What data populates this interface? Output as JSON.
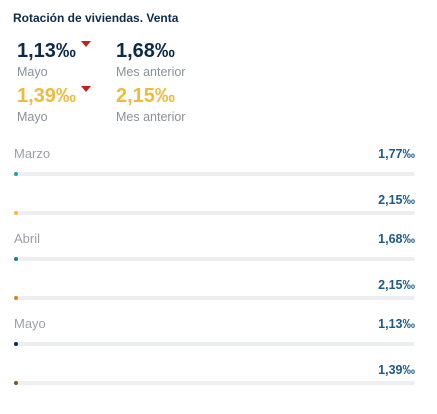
{
  "header": {
    "title": "Rotación de viviendas. Venta"
  },
  "kpis": {
    "primary_current": {
      "value": "1,13‰",
      "label": "Mayo",
      "trend": "down"
    },
    "primary_previous": {
      "value": "1,68‰",
      "label": "Mes anterior"
    },
    "secondary_current": {
      "value": "1,39‰",
      "label": "Mayo",
      "trend": "down"
    },
    "secondary_previous": {
      "value": "2,15‰",
      "label": "Mes anterior"
    }
  },
  "colors": {
    "navy": "#0d2b46",
    "gold": "#edbb3d",
    "trend_down": "#c81e1e",
    "value_text": "#1e5a86",
    "track": "#eceef0"
  },
  "chart_data": {
    "type": "bar",
    "orientation": "horizontal",
    "groups": [
      {
        "label": "Marzo",
        "bars": [
          {
            "value": 1.77,
            "text": "1,77‰",
            "color": "#1fa3a8"
          },
          {
            "value": 2.15,
            "text": "2,15‰",
            "color": "#edbb3d"
          }
        ]
      },
      {
        "label": "Abril",
        "bars": [
          {
            "value": 1.68,
            "text": "1,68‰",
            "color": "#1b7d99"
          },
          {
            "value": 2.15,
            "text": "2,15‰",
            "color": "#c58a2a"
          }
        ]
      },
      {
        "label": "Mayo",
        "bars": [
          {
            "value": 1.13,
            "text": "1,13‰",
            "color": "#0d2b46"
          },
          {
            "value": 1.39,
            "text": "1,39‰",
            "color": "#7a5a1a"
          }
        ]
      }
    ]
  }
}
